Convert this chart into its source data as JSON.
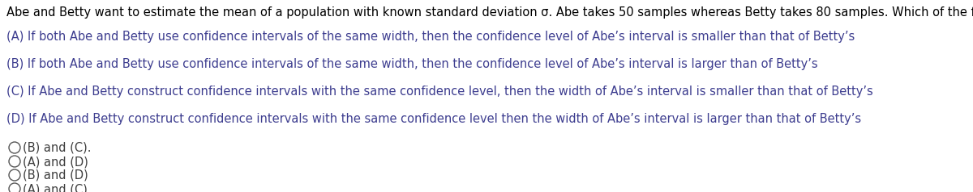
{
  "background_color": "#ffffff",
  "figsize": [
    12.0,
    2.38
  ],
  "dpi": 100,
  "title_text": "Abe and Betty want to estimate the mean of a population with known standard deviation σ. Abe takes 50 samples whereas Betty takes 80 samples. Which of the following statements are correct?",
  "options": [
    "(A) If both Abe and Betty use confidence intervals of the same width, then the confidence level of Abe’s interval is smaller than that of Betty’s",
    "(B) If both Abe and Betty use confidence intervals of the same width, then the confidence level of Abe’s interval is larger than of Betty’s",
    "(C) If Abe and Betty construct confidence intervals with the same confidence level, then the width of Abe’s interval is smaller than that of Betty’s",
    "(D) If Abe and Betty construct confidence intervals with the same confidence level then the width of Abe’s interval is larger than that of Betty’s"
  ],
  "options_color": "#3d3d8f",
  "choices": [
    "(B) and (C).",
    "(A) and (D)",
    "(B) and (D)",
    "(A) and (C)"
  ],
  "choices_color": "#3d3d3d",
  "text_fontsize": 10.5,
  "circle_color": "#555555"
}
